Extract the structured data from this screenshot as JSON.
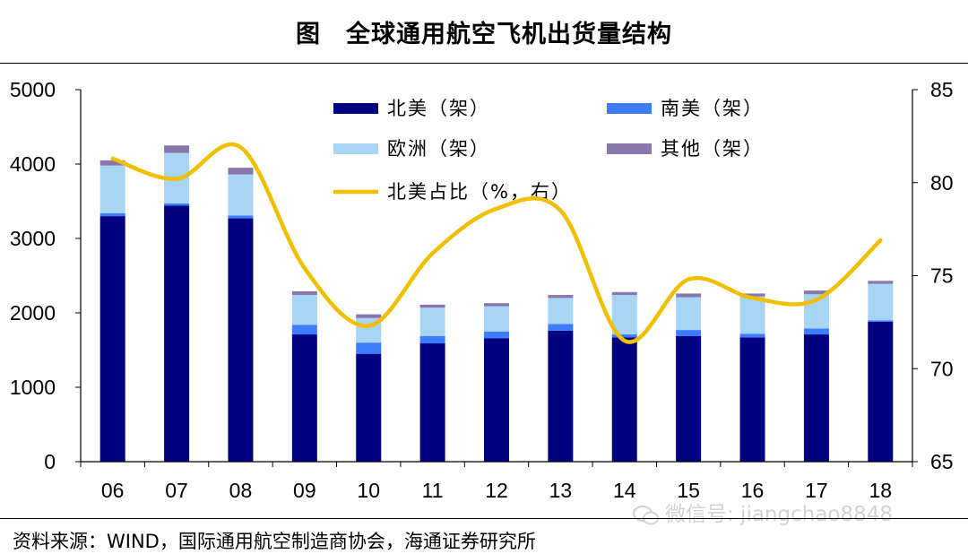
{
  "header": {
    "title": "图　全球通用航空飞机出货量结构"
  },
  "footer": {
    "source": "资料来源：WIND，国际通用航空制造商协会，海通证券研究所"
  },
  "watermark": {
    "text": "微信号: jiangchao8848",
    "icon": "wechat-icon"
  },
  "chart_data": {
    "type": "bar",
    "stacked": true,
    "categories": [
      "06",
      "07",
      "08",
      "09",
      "10",
      "11",
      "12",
      "13",
      "14",
      "15",
      "16",
      "17",
      "18"
    ],
    "series": [
      {
        "name": "北美（架）",
        "color": "#000080",
        "axis": "left",
        "values": [
          3300,
          3440,
          3270,
          1710,
          1450,
          1590,
          1660,
          1760,
          1670,
          1690,
          1670,
          1710,
          1880
        ]
      },
      {
        "name": "南美（架）",
        "color": "#3d7cff",
        "axis": "left",
        "values": [
          40,
          30,
          40,
          130,
          150,
          100,
          90,
          90,
          40,
          80,
          50,
          80,
          20
        ]
      },
      {
        "name": "欧洲（架）",
        "color": "#a9d5f5",
        "axis": "left",
        "values": [
          640,
          680,
          550,
          400,
          330,
          380,
          340,
          350,
          530,
          440,
          500,
          460,
          490
        ]
      },
      {
        "name": "其他（架）",
        "color": "#8877aa",
        "axis": "left",
        "values": [
          70,
          100,
          90,
          50,
          50,
          40,
          40,
          40,
          40,
          50,
          40,
          50,
          40
        ]
      }
    ],
    "line_series": {
      "name": "北美占比（%，右）",
      "color": "#f0c000",
      "axis": "right",
      "values": [
        81.3,
        80.2,
        81.9,
        75.4,
        72.3,
        76.2,
        78.6,
        78.5,
        71.5,
        74.8,
        73.8,
        73.7,
        76.9
      ]
    },
    "y_left": {
      "min": 0,
      "max": 5000,
      "ticks": [
        0,
        1000,
        2000,
        3000,
        4000,
        5000
      ]
    },
    "y_right": {
      "min": 65,
      "max": 85,
      "ticks": [
        65,
        70,
        75,
        80,
        85
      ]
    },
    "grid": false,
    "legend_position": "top-center"
  }
}
